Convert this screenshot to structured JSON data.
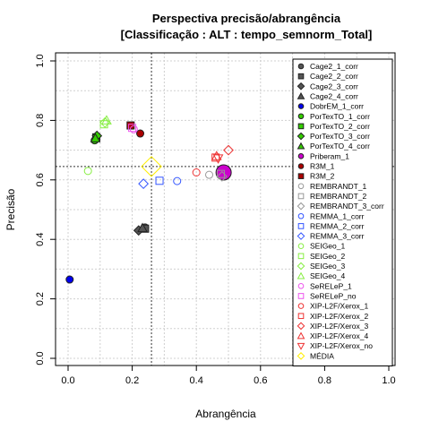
{
  "chart_data": {
    "type": "scatter",
    "title": "Perspectiva precisão/abrangência",
    "subtitle": "[Classificação : ALT : tempo_semnorm_Total]",
    "xlabel": "Abrangência",
    "ylabel": "Precisão",
    "xlim": [
      0,
      1
    ],
    "ylim": [
      0,
      1
    ],
    "xticks": [
      "0.0",
      "0.2",
      "0.4",
      "0.6",
      "0.8",
      "1.0"
    ],
    "yticks": [
      "0.0",
      "0.2",
      "0.4",
      "0.6",
      "0.8",
      "1.0"
    ],
    "grid": true,
    "legend_position": "right",
    "reference_lines": {
      "x": 0.26,
      "y": 0.645
    },
    "series": [
      {
        "name": "Cage2_1_corr",
        "marker": "circle",
        "color": "#555555",
        "filled": true,
        "points": [
          [
            0.24,
            0.44
          ]
        ]
      },
      {
        "name": "Cage2_2_corr",
        "marker": "square",
        "color": "#555555",
        "filled": true,
        "points": [
          [
            0.24,
            0.436
          ]
        ]
      },
      {
        "name": "Cage2_3_corr",
        "marker": "diamond",
        "color": "#555555",
        "filled": true,
        "points": [
          [
            0.22,
            0.43
          ]
        ]
      },
      {
        "name": "Cage2_4_corr",
        "marker": "triangle",
        "color": "#555555",
        "filled": true,
        "points": [
          [
            0.232,
            0.438
          ]
        ]
      },
      {
        "name": "DobrEM_1_corr",
        "marker": "circle",
        "color": "#0000ee",
        "filled": true,
        "points": [
          [
            0.005,
            0.265
          ]
        ]
      },
      {
        "name": "PorTexTO_1_corr",
        "marker": "circle",
        "color": "#33cc00",
        "filled": true,
        "points": [
          [
            0.083,
            0.733
          ]
        ]
      },
      {
        "name": "PorTexTO_2_corr",
        "marker": "square",
        "color": "#33cc00",
        "filled": true,
        "points": [
          [
            0.088,
            0.743
          ]
        ]
      },
      {
        "name": "PorTexTO_3_corr",
        "marker": "diamond",
        "color": "#33cc00",
        "filled": true,
        "points": [
          [
            0.09,
            0.748
          ]
        ]
      },
      {
        "name": "PorTexTO_4_corr",
        "marker": "triangle",
        "color": "#33cc00",
        "filled": true,
        "points": [
          [
            0.085,
            0.74
          ]
        ]
      },
      {
        "name": "Priberam_1",
        "marker": "circle",
        "color": "#cc00cc",
        "filled": true,
        "points": [
          [
            0.485,
            0.625
          ]
        ]
      },
      {
        "name": "R3M_1",
        "marker": "circle",
        "color": "#aa0000",
        "filled": true,
        "points": [
          [
            0.225,
            0.756
          ]
        ]
      },
      {
        "name": "R3M_2",
        "marker": "square",
        "color": "#aa0000",
        "filled": true,
        "points": [
          [
            0.195,
            0.783
          ]
        ]
      },
      {
        "name": "REMBRANDT_1",
        "marker": "circle",
        "color": "#999999",
        "filled": false,
        "points": [
          [
            0.44,
            0.617
          ]
        ]
      },
      {
        "name": "REMBRANDT_2",
        "marker": "square",
        "color": "#999999",
        "filled": false,
        "points": [
          [
            0.476,
            0.62
          ]
        ]
      },
      {
        "name": "REMBRANDT_3_corr",
        "marker": "diamond",
        "color": "#999999",
        "filled": false,
        "points": [
          [
            0.48,
            0.612
          ]
        ]
      },
      {
        "name": "REMMA_1_corr",
        "marker": "circle",
        "color": "#3355ff",
        "filled": false,
        "points": [
          [
            0.34,
            0.596
          ]
        ]
      },
      {
        "name": "REMMA_2_corr",
        "marker": "square",
        "color": "#3355ff",
        "filled": false,
        "points": [
          [
            0.285,
            0.597
          ]
        ]
      },
      {
        "name": "REMMA_3_corr",
        "marker": "diamond",
        "color": "#3355ff",
        "filled": false,
        "points": [
          [
            0.235,
            0.587
          ]
        ]
      },
      {
        "name": "SEIGeo_1",
        "marker": "circle",
        "color": "#88ee44",
        "filled": false,
        "points": [
          [
            0.062,
            0.63
          ]
        ]
      },
      {
        "name": "SEIGeo_2",
        "marker": "square",
        "color": "#88ee44",
        "filled": false,
        "points": [
          [
            0.112,
            0.787
          ]
        ]
      },
      {
        "name": "SEIGeo_3",
        "marker": "diamond",
        "color": "#88ee44",
        "filled": false,
        "points": [
          [
            0.115,
            0.793
          ]
        ]
      },
      {
        "name": "SEIGeo_4",
        "marker": "triangle",
        "color": "#88ee44",
        "filled": false,
        "points": [
          [
            0.12,
            0.8
          ]
        ]
      },
      {
        "name": "SeRELeP_1",
        "marker": "circle",
        "color": "#ee55ee",
        "filled": false,
        "points": [
          [
            0.205,
            0.77
          ]
        ]
      },
      {
        "name": "SeRELeP_no",
        "marker": "square",
        "color": "#ee55ee",
        "filled": false,
        "points": [
          [
            0.2,
            0.775
          ]
        ]
      },
      {
        "name": "XIP-L2F/Xerox_1",
        "marker": "circle",
        "color": "#ee3333",
        "filled": false,
        "points": [
          [
            0.4,
            0.625
          ]
        ]
      },
      {
        "name": "XIP-L2F/Xerox_2",
        "marker": "square",
        "color": "#ee3333",
        "filled": false,
        "points": [
          [
            0.46,
            0.675
          ]
        ]
      },
      {
        "name": "XIP-L2F/Xerox_3",
        "marker": "diamond",
        "color": "#ee3333",
        "filled": false,
        "points": [
          [
            0.5,
            0.7
          ]
        ]
      },
      {
        "name": "XIP-L2F/Xerox_4",
        "marker": "triangle",
        "color": "#ee3333",
        "filled": false,
        "points": [
          [
            0.463,
            0.68
          ]
        ]
      },
      {
        "name": "XIP-L2F/Xerox_no",
        "marker": "triangle-down",
        "color": "#ee3333",
        "filled": false,
        "points": [
          [
            0.468,
            0.672
          ]
        ]
      },
      {
        "name": "MÉDIA",
        "marker": "diamond",
        "color": "#ffee00",
        "filled": false,
        "points": [
          [
            0.26,
            0.645
          ]
        ]
      }
    ]
  }
}
